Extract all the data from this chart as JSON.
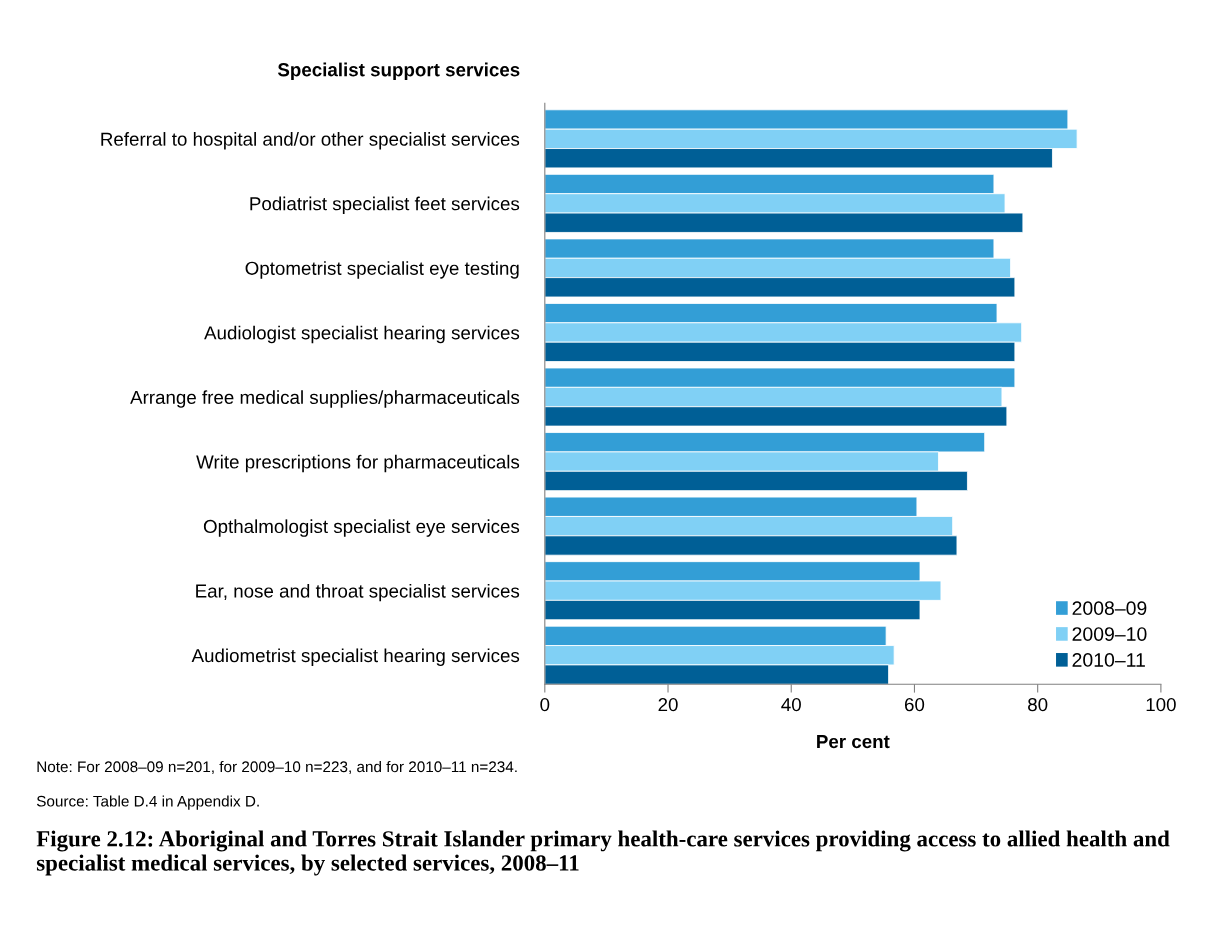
{
  "chart_data": {
    "type": "bar",
    "orientation": "horizontal",
    "title": "Specialist support services",
    "xlabel": "Per cent",
    "categories": [
      "Referral to hospital and/or other specialist services",
      "Podiatrist specialist feet services",
      "Optometrist specialist eye testing",
      "Audiologist specialist hearing services",
      "Arrange free medical supplies/pharmaceuticals",
      "Write prescriptions for pharmaceuticals",
      "Opthalmologist specialist eye services",
      "Ear, nose and throat specialist services",
      "Audiometrist specialist hearing services"
    ],
    "series": [
      {
        "name": "2008–09",
        "color": "#339ed6",
        "values": [
          84.9,
          72.9,
          72.9,
          73.4,
          76.3,
          71.4,
          60.4,
          60.9,
          55.4
        ]
      },
      {
        "name": "2009–10",
        "color": "#80d0f5",
        "values": [
          86.4,
          74.7,
          75.6,
          77.4,
          74.2,
          63.9,
          66.2,
          64.3,
          56.7
        ]
      },
      {
        "name": "2010–11",
        "color": "#005f96",
        "values": [
          82.4,
          77.6,
          76.3,
          76.3,
          75.0,
          68.6,
          66.9,
          60.9,
          55.8
        ]
      }
    ],
    "xlim": [
      0,
      100
    ],
    "xticks": [
      0,
      20,
      40,
      60,
      80,
      100
    ],
    "grid": false,
    "legend": "bottom right",
    "annotations": [
      "Note: For 2008–09 n=201, for 2009–10 n=223, and for 2010–11 n=234.",
      "Source: Table D.4 in Appendix D.",
      "Figure 2.12: Aboriginal and Torres Strait Islander primary health-care services providing access to allied health and specialist medical services, by selected services, 2008–11"
    ]
  }
}
